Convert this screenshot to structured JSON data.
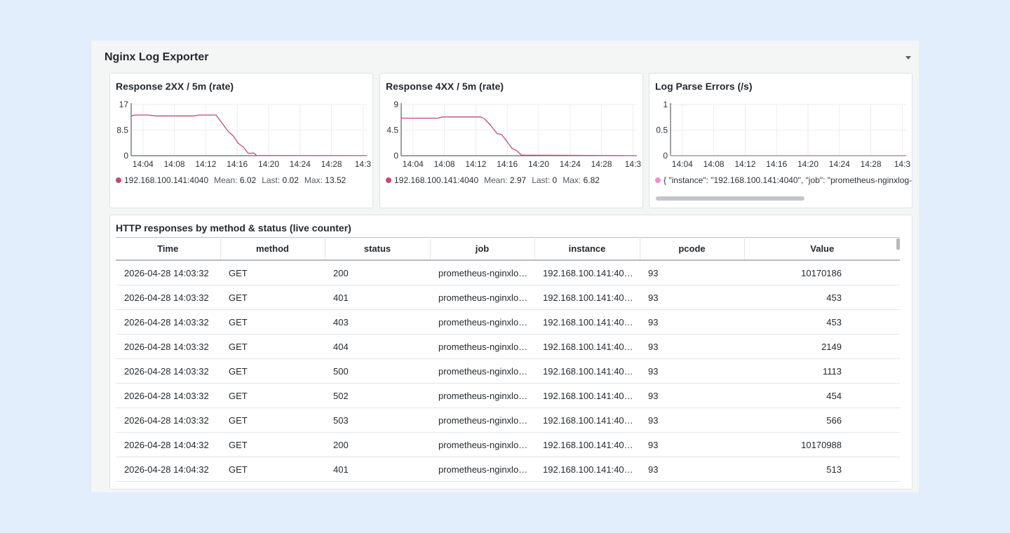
{
  "row": {
    "title": "Nginx Log Exporter"
  },
  "colors": {
    "series_red": "#d44a7a",
    "series_pink": "#f08cc8",
    "grid": "#ebedf0",
    "axis": "#3b4046"
  },
  "panels": [
    {
      "title": "Response 2XX / 5m (rate)",
      "legend": {
        "name": "192.168.100.141:4040",
        "mean_label": "Mean:",
        "mean": "6.02",
        "last_label": "Last:",
        "last": "0.02",
        "max_label": "Max:",
        "max": "13.52",
        "color": "#c8486e"
      }
    },
    {
      "title": "Response 4XX / 5m (rate)",
      "legend": {
        "name": "192.168.100.141:4040",
        "mean_label": "Mean:",
        "mean": "2.97",
        "last_label": "Last:",
        "last": "0",
        "max_label": "Max:",
        "max": "6.82",
        "color": "#c8486e"
      }
    },
    {
      "title": "Log Parse Errors (/s)",
      "legend": {
        "name": "{ \"instance\": \"192.168.100.141:4040\", \"job\": \"prometheus-nginxlog-",
        "color": "#f08cc8"
      }
    }
  ],
  "chart_data": [
    {
      "type": "line",
      "title": "Response 2XX / 5m (rate)",
      "x_ticks": [
        "14:04",
        "14:08",
        "14:12",
        "14:16",
        "14:20",
        "14:24",
        "14:28",
        "14:3"
      ],
      "y_ticks": [
        "0",
        "8.5",
        "17"
      ],
      "ylim": [
        0,
        17
      ],
      "xlim_min": [
        0,
        30
      ],
      "series": [
        {
          "name": "192.168.100.141:4040",
          "color": "#c8486e",
          "points": [
            [
              0,
              13.1
            ],
            [
              0.4,
              13.5
            ],
            [
              2,
              13.5
            ],
            [
              3.2,
              13.2
            ],
            [
              8,
              13.2
            ],
            [
              8.6,
              13.5
            ],
            [
              10.8,
              13.5
            ],
            [
              11.4,
              11.4
            ],
            [
              12.4,
              7.9
            ],
            [
              13,
              6.6
            ],
            [
              13.6,
              4.2
            ],
            [
              14.3,
              2.8
            ],
            [
              14.9,
              0.8
            ],
            [
              15.6,
              0.9
            ],
            [
              16,
              0.05
            ],
            [
              30,
              0.02
            ]
          ]
        }
      ],
      "grid": true
    },
    {
      "type": "line",
      "title": "Response 4XX / 5m (rate)",
      "x_ticks": [
        "14:04",
        "14:08",
        "14:12",
        "14:16",
        "14:20",
        "14:24",
        "14:28",
        "14:3"
      ],
      "y_ticks": [
        "0",
        "4.5",
        "9"
      ],
      "ylim": [
        0,
        9
      ],
      "xlim_min": [
        0,
        30
      ],
      "series": [
        {
          "name": "192.168.100.141:4040",
          "color": "#c8486e",
          "points": [
            [
              0,
              6.6
            ],
            [
              4.7,
              6.6
            ],
            [
              5.2,
              6.8
            ],
            [
              10.1,
              6.8
            ],
            [
              10.6,
              6.5
            ],
            [
              11.4,
              5.3
            ],
            [
              12.2,
              3.9
            ],
            [
              12.8,
              3.7
            ],
            [
              13.4,
              2.6
            ],
            [
              14.1,
              1.3
            ],
            [
              14.7,
              0.9
            ],
            [
              15.3,
              0.1
            ],
            [
              30,
              0
            ]
          ]
        }
      ],
      "grid": true
    },
    {
      "type": "line",
      "title": "Log Parse Errors (/s)",
      "x_ticks": [
        "14:04",
        "14:08",
        "14:12",
        "14:16",
        "14:20",
        "14:24",
        "14:28",
        "14:3"
      ],
      "y_ticks": [
        "0",
        "0.5",
        "1"
      ],
      "ylim": [
        0,
        1
      ],
      "xlim_min": [
        0,
        30
      ],
      "series": [
        {
          "name": "{ \"instance\": \"192.168.100.141:4040\", \"job\": \"prometheus-nginxlog-",
          "color": "#f08cc8",
          "points": [
            [
              0,
              0.005
            ],
            [
              30,
              0.005
            ]
          ]
        }
      ],
      "grid": true
    }
  ],
  "table": {
    "title": "HTTP responses by method & status (live counter)",
    "columns": [
      "Time",
      "method",
      "status",
      "job",
      "instance",
      "pcode",
      "Value"
    ],
    "rows": [
      [
        "2026-04-28 14:03:32",
        "GET",
        "200",
        "prometheus-nginxlo…",
        "192.168.100.141:40…",
        "93",
        "10170186"
      ],
      [
        "2026-04-28 14:03:32",
        "GET",
        "401",
        "prometheus-nginxlo…",
        "192.168.100.141:40…",
        "93",
        "453"
      ],
      [
        "2026-04-28 14:03:32",
        "GET",
        "403",
        "prometheus-nginxlo…",
        "192.168.100.141:40…",
        "93",
        "453"
      ],
      [
        "2026-04-28 14:03:32",
        "GET",
        "404",
        "prometheus-nginxlo…",
        "192.168.100.141:40…",
        "93",
        "2149"
      ],
      [
        "2026-04-28 14:03:32",
        "GET",
        "500",
        "prometheus-nginxlo…",
        "192.168.100.141:40…",
        "93",
        "1113"
      ],
      [
        "2026-04-28 14:03:32",
        "GET",
        "502",
        "prometheus-nginxlo…",
        "192.168.100.141:40…",
        "93",
        "454"
      ],
      [
        "2026-04-28 14:03:32",
        "GET",
        "503",
        "prometheus-nginxlo…",
        "192.168.100.141:40…",
        "93",
        "566"
      ],
      [
        "2026-04-28 14:04:32",
        "GET",
        "200",
        "prometheus-nginxlo…",
        "192.168.100.141:40…",
        "93",
        "10170988"
      ],
      [
        "2026-04-28 14:04:32",
        "GET",
        "401",
        "prometheus-nginxlo…",
        "192.168.100.141:40…",
        "93",
        "513"
      ]
    ]
  }
}
